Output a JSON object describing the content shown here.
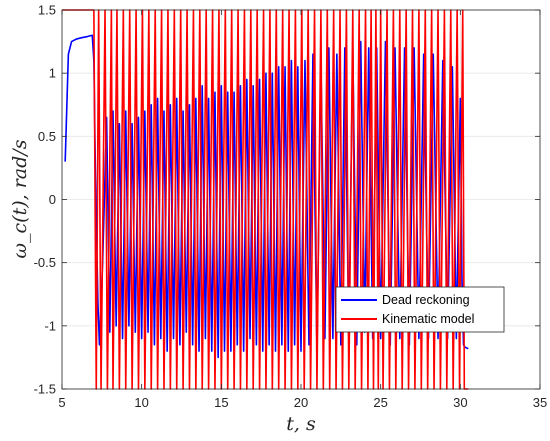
{
  "chart_data": {
    "type": "line",
    "xlabel": "t, s",
    "ylabel": "ω_c(t), rad/s",
    "xlim": [
      5,
      35
    ],
    "ylim": [
      -1.5,
      1.5
    ],
    "x_ticks": [
      "5",
      "10",
      "15",
      "20",
      "25",
      "30",
      "35"
    ],
    "y_ticks": [
      "-1.5",
      "-1",
      "-0.5",
      "0",
      "0.5",
      "1",
      "1.5"
    ],
    "grid": true,
    "legend_position": "lower-right",
    "series": [
      {
        "name": "Dead reckoning",
        "color": "#0000ff",
        "x": [
          5.2,
          5.4,
          5.6,
          5.9,
          6.2,
          6.6,
          6.9,
          7.0,
          7.1,
          7.25,
          7.35,
          7.55,
          7.8,
          8.0,
          8.2,
          8.4,
          8.6,
          8.8,
          9.0,
          9.2,
          9.4,
          9.6,
          9.8,
          10.0,
          10.2,
          10.4,
          10.6,
          10.8,
          11.0,
          11.2,
          11.4,
          11.6,
          11.8,
          12.0,
          12.2,
          12.4,
          12.6,
          12.8,
          13.0,
          13.2,
          13.4,
          13.6,
          13.8,
          14.0,
          14.2,
          14.4,
          14.6,
          14.8,
          15.0,
          15.2,
          15.4,
          15.6,
          15.8,
          16.0,
          16.2,
          16.4,
          16.6,
          16.8,
          17.0,
          17.2,
          17.4,
          17.6,
          17.8,
          18.0,
          18.2,
          18.4,
          18.6,
          18.8,
          19.0,
          19.2,
          19.4,
          19.6,
          19.8,
          20.0,
          20.25,
          20.5,
          20.75,
          21.0,
          21.25,
          21.5,
          21.75,
          22.0,
          22.25,
          22.5,
          22.75,
          23.0,
          23.25,
          23.5,
          23.75,
          24.0,
          24.25,
          24.5,
          24.75,
          25.0,
          25.3,
          25.6,
          25.9,
          26.2,
          26.5,
          26.8,
          27.1,
          27.4,
          27.7,
          28.0,
          28.3,
          28.6,
          28.9,
          29.2,
          29.5,
          29.75,
          30.0,
          30.1,
          30.2,
          30.3,
          30.5
        ],
        "y": [
          0.3,
          1.15,
          1.25,
          1.27,
          1.28,
          1.29,
          1.3,
          1.1,
          0.2,
          -0.8,
          -1.15,
          -0.5,
          0.65,
          -1.05,
          0.7,
          -1.0,
          0.6,
          -1.1,
          0.7,
          -1.0,
          0.6,
          -1.05,
          0.65,
          -1.1,
          0.7,
          -1.05,
          0.75,
          -1.15,
          0.8,
          -1.1,
          0.7,
          -1.2,
          0.75,
          -1.1,
          0.8,
          -1.15,
          0.7,
          -1.05,
          0.75,
          -1.15,
          0.8,
          -1.2,
          0.9,
          -1.1,
          0.8,
          -1.2,
          0.85,
          -1.25,
          0.9,
          -1.2,
          0.85,
          -1.2,
          0.85,
          -1.15,
          0.9,
          -1.2,
          0.95,
          -1.1,
          0.9,
          -1.15,
          0.95,
          -1.2,
          1.0,
          -1.15,
          1.0,
          -1.2,
          1.05,
          -1.15,
          1.05,
          -1.2,
          1.1,
          -1.15,
          1.05,
          -1.2,
          1.1,
          -1.15,
          1.15,
          -1.2,
          1.1,
          -1.1,
          1.2,
          -1.1,
          1.15,
          -1.15,
          1.2,
          -1.1,
          1.2,
          -1.15,
          1.25,
          -1.05,
          1.2,
          -1.1,
          1.2,
          -1.1,
          1.25,
          -1.15,
          1.2,
          -1.1,
          1.2,
          -1.15,
          1.2,
          -1.1,
          1.15,
          -1.1,
          1.15,
          -1.1,
          1.1,
          -1.1,
          1.05,
          -1.1,
          0.8,
          -0.6,
          -1.15,
          -1.17,
          -1.18
        ]
      },
      {
        "name": "Kinematic model",
        "color": "#ff0000",
        "x": [
          5.0,
          7.0,
          7.15,
          7.3,
          7.45,
          7.7,
          7.85,
          8.1,
          8.2,
          8.45,
          8.6,
          8.85,
          9.0,
          9.25,
          9.4,
          9.65,
          9.8,
          10.05,
          10.2,
          10.45,
          10.6,
          10.85,
          11.0,
          11.25,
          11.4,
          11.65,
          11.8,
          12.05,
          12.2,
          12.45,
          12.6,
          12.85,
          13.0,
          13.25,
          13.4,
          13.65,
          13.8,
          14.05,
          14.2,
          14.45,
          14.6,
          14.85,
          15.0,
          15.25,
          15.4,
          15.65,
          15.8,
          16.05,
          16.2,
          16.45,
          16.6,
          16.85,
          17.0,
          17.25,
          17.4,
          17.65,
          17.8,
          18.05,
          18.2,
          18.45,
          18.6,
          18.85,
          19.0,
          19.25,
          19.4,
          19.65,
          19.8,
          20.05,
          20.2,
          20.45,
          20.6,
          20.85,
          21.0,
          21.25,
          21.4,
          21.65,
          21.8,
          22.05,
          22.2,
          22.45,
          22.6,
          22.85,
          23.0,
          23.25,
          23.4,
          23.65,
          23.8,
          24.05,
          24.2,
          24.4,
          24.55,
          24.7,
          24.85,
          25.0,
          25.15,
          25.4,
          25.55,
          25.8,
          25.95,
          26.2,
          26.35,
          26.6,
          26.75,
          27.0,
          27.15,
          27.4,
          27.55,
          27.8,
          27.95,
          28.2,
          28.35,
          28.6,
          28.75,
          29.0,
          29.15,
          29.4,
          29.55,
          29.8,
          29.95,
          30.15,
          30.25,
          30.5
        ],
        "y": [
          1.5,
          1.5,
          -1.5,
          1.5,
          -1.5,
          1.5,
          -1.5,
          1.5,
          -1.5,
          1.5,
          -1.5,
          1.5,
          -1.5,
          1.5,
          -1.5,
          1.5,
          -1.5,
          1.5,
          -1.5,
          1.5,
          -1.5,
          1.5,
          -1.5,
          1.5,
          -1.5,
          1.5,
          -1.5,
          1.5,
          -1.5,
          1.5,
          -1.5,
          1.5,
          -1.5,
          1.5,
          -1.5,
          1.5,
          -1.5,
          1.5,
          -1.5,
          1.5,
          -1.5,
          1.5,
          -1.5,
          1.5,
          -1.5,
          1.5,
          -1.5,
          1.5,
          -1.5,
          1.5,
          -1.5,
          1.5,
          -1.5,
          1.5,
          -1.5,
          1.5,
          -1.5,
          1.5,
          -1.5,
          1.5,
          -1.5,
          1.5,
          -1.5,
          1.5,
          -1.5,
          1.5,
          -1.5,
          1.5,
          -1.5,
          1.5,
          -1.5,
          1.5,
          -1.5,
          1.5,
          -1.5,
          1.5,
          -1.5,
          1.5,
          -1.5,
          1.5,
          -1.5,
          1.5,
          -1.5,
          1.5,
          -1.5,
          1.5,
          -1.5,
          1.5,
          -1.5,
          1.5,
          -1.5,
          1.5,
          -1.5,
          1.5,
          -1.5,
          1.5,
          -1.5,
          1.5,
          -1.5,
          1.5,
          -1.5,
          1.5,
          -1.5,
          1.5,
          -1.5,
          1.5,
          -1.5,
          1.5,
          -1.5,
          1.5,
          -1.5,
          1.5,
          -1.5,
          1.5,
          -1.5,
          1.5,
          -1.5,
          1.5,
          -1.5,
          1.5,
          -1.5,
          -1.5
        ]
      }
    ]
  }
}
